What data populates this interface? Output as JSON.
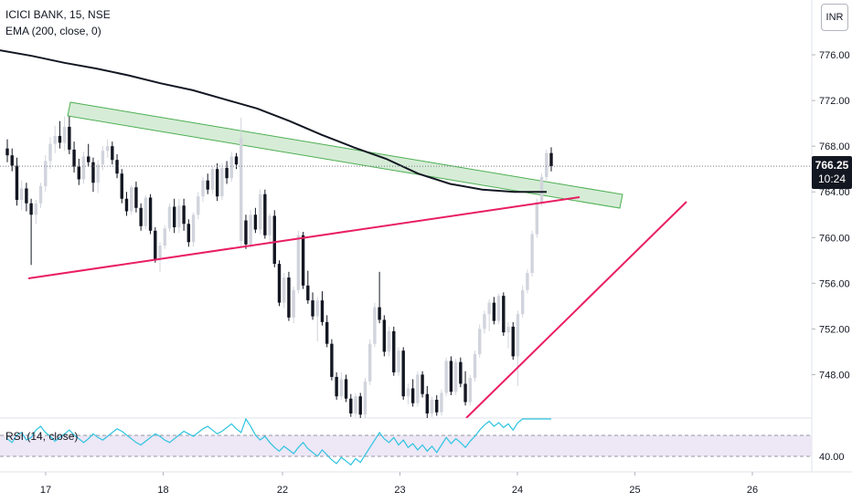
{
  "legend": {
    "symbol": "ICICI BANK, 15, NSE",
    "ema": "EMA (200, close, 0)",
    "rsi": "RSI (14, close)"
  },
  "currency": "INR",
  "last_price": {
    "price": "766.25",
    "countdown": "10:24"
  },
  "colors": {
    "up": "#d1d4dc",
    "down": "#131722",
    "ema": "#131722",
    "rsi_line": "#2ec4e0",
    "rsi_band": "#ede7f6",
    "channel_fill": "#c8e6c9",
    "channel_stroke": "#4caf50",
    "trendline": "#e91e63",
    "last_price_bg": "#131722"
  },
  "chart_data": {
    "type": "candlestick",
    "price_axis": {
      "ticks": [
        748,
        752,
        756,
        760,
        764,
        768,
        772,
        776
      ],
      "range": [
        744.2,
        780.8
      ]
    },
    "rsi_axis": {
      "ticks": [
        40
      ],
      "bands": [
        30,
        70
      ]
    },
    "time_axis": {
      "ticks": [
        "17",
        "18",
        "22",
        "23",
        "24",
        "25",
        "26"
      ]
    },
    "last_price": 766.25,
    "candles": [
      [
        767.8,
        768.6,
        766.6,
        767.2
      ],
      [
        767.2,
        767.8,
        765.8,
        766.3
      ],
      [
        766.3,
        767.0,
        762.8,
        763.3
      ],
      [
        763.3,
        765.0,
        762.4,
        764.3
      ],
      [
        764.3,
        764.8,
        762.3,
        763.0
      ],
      [
        763.0,
        763.4,
        757.6,
        762.0
      ],
      [
        762.0,
        763.3,
        761.2,
        763.0
      ],
      [
        763.0,
        764.8,
        762.6,
        764.5
      ],
      [
        764.5,
        767.2,
        764.0,
        766.7
      ],
      [
        766.7,
        768.8,
        766.0,
        768.2
      ],
      [
        768.2,
        769.8,
        767.4,
        768.9
      ],
      [
        768.9,
        770.2,
        767.8,
        768.3
      ],
      [
        768.3,
        770.6,
        767.6,
        769.7
      ],
      [
        769.7,
        770.6,
        767.3,
        767.7
      ],
      [
        767.7,
        768.4,
        765.7,
        766.2
      ],
      [
        766.2,
        766.9,
        764.6,
        765.1
      ],
      [
        765.1,
        767.5,
        764.7,
        767.1
      ],
      [
        767.1,
        768.2,
        766.2,
        766.6
      ],
      [
        766.6,
        767.0,
        764.0,
        764.8
      ],
      [
        764.8,
        766.8,
        763.9,
        766.4
      ],
      [
        766.4,
        768.0,
        765.9,
        767.6
      ],
      [
        767.6,
        768.6,
        767.0,
        768.0
      ],
      [
        768.0,
        768.4,
        766.4,
        766.8
      ],
      [
        766.8,
        767.3,
        765.2,
        765.6
      ],
      [
        765.6,
        766.0,
        763.0,
        763.4
      ],
      [
        763.4,
        764.0,
        761.9,
        762.3
      ],
      [
        762.3,
        764.6,
        762.0,
        764.4
      ],
      [
        764.4,
        764.9,
        762.2,
        762.6
      ],
      [
        762.6,
        763.0,
        760.6,
        761.0
      ],
      [
        761.0,
        763.7,
        760.7,
        763.5
      ],
      [
        763.5,
        763.8,
        760.3,
        760.6
      ],
      [
        760.6,
        760.9,
        757.8,
        758.1
      ],
      [
        758.1,
        759.6,
        757.0,
        759.3
      ],
      [
        759.3,
        761.1,
        759.0,
        760.8
      ],
      [
        760.8,
        763.0,
        760.5,
        762.7
      ],
      [
        762.7,
        763.4,
        760.4,
        760.9
      ],
      [
        760.9,
        763.4,
        760.4,
        762.8
      ],
      [
        762.8,
        763.4,
        760.6,
        761.2
      ],
      [
        761.2,
        761.6,
        759.2,
        759.6
      ],
      [
        759.6,
        762.2,
        759.2,
        762.0
      ],
      [
        762.0,
        764.0,
        761.6,
        763.6
      ],
      [
        763.6,
        765.3,
        763.1,
        765.0
      ],
      [
        765.0,
        765.6,
        763.8,
        764.2
      ],
      [
        764.2,
        766.3,
        763.8,
        766.0
      ],
      [
        766.0,
        766.5,
        763.2,
        763.6
      ],
      [
        763.6,
        766.5,
        763.3,
        766.1
      ],
      [
        766.1,
        766.7,
        764.7,
        765.2
      ],
      [
        765.2,
        767.5,
        764.9,
        767.1
      ],
      [
        767.1,
        767.4,
        766.0,
        766.4
      ],
      [
        759.7,
        770.5,
        759.2,
        768.7
      ],
      [
        761.5,
        762.0,
        759.0,
        759.4
      ],
      [
        759.4,
        762.4,
        759.1,
        762.0
      ],
      [
        762.0,
        762.6,
        760.4,
        760.7
      ],
      [
        760.7,
        764.2,
        760.3,
        763.8
      ],
      [
        763.8,
        764.2,
        759.9,
        760.2
      ],
      [
        760.2,
        762.1,
        759.6,
        761.9
      ],
      [
        761.9,
        762.4,
        757.4,
        757.7
      ],
      [
        757.7,
        758.0,
        754.0,
        754.3
      ],
      [
        754.3,
        756.9,
        753.8,
        756.5
      ],
      [
        756.5,
        757.0,
        752.7,
        753.0
      ],
      [
        753.0,
        755.7,
        752.5,
        755.4
      ],
      [
        755.4,
        760.6,
        755.1,
        760.2
      ],
      [
        760.2,
        760.5,
        755.5,
        755.8
      ],
      [
        755.8,
        757.1,
        754.2,
        754.5
      ],
      [
        754.5,
        755.2,
        752.8,
        753.1
      ],
      [
        753.1,
        754.8,
        750.9,
        754.5
      ],
      [
        754.5,
        755.3,
        752.3,
        752.6
      ],
      [
        752.6,
        753.2,
        750.4,
        750.7
      ],
      [
        750.7,
        751.1,
        747.5,
        747.8
      ],
      [
        747.8,
        748.2,
        745.8,
        746.1
      ],
      [
        746.1,
        748.2,
        745.8,
        747.6
      ],
      [
        747.6,
        748.0,
        745.6,
        745.9
      ],
      [
        745.9,
        746.3,
        744.3,
        744.6
      ],
      [
        744.6,
        746.4,
        744.3,
        746.1
      ],
      [
        746.1,
        746.4,
        744.2,
        744.5
      ],
      [
        744.5,
        747.7,
        744.2,
        747.4
      ],
      [
        747.4,
        751.1,
        747.1,
        750.7
      ],
      [
        750.7,
        754.3,
        750.4,
        753.9
      ],
      [
        753.9,
        757.0,
        752.5,
        752.8
      ],
      [
        752.8,
        753.2,
        749.6,
        750.0
      ],
      [
        750.0,
        752.2,
        749.6,
        751.8
      ],
      [
        751.8,
        752.2,
        747.9,
        748.2
      ],
      [
        748.2,
        750.4,
        747.9,
        750.1
      ],
      [
        750.1,
        750.4,
        745.8,
        746.1
      ],
      [
        746.1,
        747.2,
        745.4,
        746.8
      ],
      [
        746.8,
        747.6,
        745.2,
        745.5
      ],
      [
        745.5,
        748.3,
        745.2,
        748.0
      ],
      [
        748.0,
        748.3,
        746.0,
        746.3
      ],
      [
        746.3,
        747.0,
        744.2,
        744.6
      ],
      [
        744.6,
        746.1,
        744.3,
        745.8
      ],
      [
        745.8,
        746.2,
        744.4,
        744.7
      ],
      [
        744.7,
        746.7,
        744.4,
        746.4
      ],
      [
        746.4,
        749.5,
        746.1,
        749.2
      ],
      [
        749.2,
        749.6,
        746.2,
        746.5
      ],
      [
        746.5,
        749.4,
        746.2,
        749.1
      ],
      [
        749.1,
        749.5,
        746.9,
        747.2
      ],
      [
        747.2,
        748.3,
        745.3,
        745.6
      ],
      [
        745.6,
        748.0,
        745.3,
        747.7
      ],
      [
        747.7,
        750.1,
        747.4,
        749.8
      ],
      [
        749.8,
        752.4,
        749.5,
        752.0
      ],
      [
        752.0,
        753.6,
        751.6,
        753.3
      ],
      [
        753.3,
        754.6,
        751.8,
        754.3
      ],
      [
        754.3,
        754.8,
        752.4,
        752.7
      ],
      [
        752.7,
        755.1,
        752.4,
        754.9
      ],
      [
        754.9,
        755.2,
        751.4,
        751.7
      ],
      [
        751.7,
        752.6,
        750.3,
        752.2
      ],
      [
        752.2,
        752.6,
        749.3,
        749.6
      ],
      [
        749.6,
        753.6,
        747.0,
        753.3
      ],
      [
        753.3,
        755.8,
        753.0,
        755.4
      ],
      [
        755.4,
        757.2,
        755.1,
        756.9
      ],
      [
        756.9,
        760.6,
        756.6,
        760.3
      ],
      [
        760.3,
        763.4,
        760.0,
        763.1
      ],
      [
        763.1,
        765.6,
        762.8,
        765.3
      ],
      [
        765.3,
        767.7,
        765.0,
        767.4
      ],
      [
        767.4,
        767.9,
        765.8,
        766.25
      ]
    ],
    "ema_200": [
      776.4,
      775.9,
      775.3,
      774.8,
      774.2,
      773.5,
      772.9,
      772.1,
      771.3,
      770.2,
      769.0,
      767.9,
      766.9,
      765.6,
      764.7,
      764.2,
      764.0,
      764.0
    ],
    "rsi": [
      45,
      42,
      48,
      50,
      44,
      46,
      52,
      55,
      50,
      47,
      43,
      46,
      49,
      52,
      48,
      45,
      42,
      45,
      49,
      46,
      44,
      47,
      50,
      53,
      51,
      48,
      45,
      42,
      40,
      43,
      46,
      49,
      47,
      44,
      42,
      45,
      48,
      51,
      49,
      47,
      50,
      53,
      55,
      52,
      49,
      51,
      54,
      57,
      53,
      50,
      62,
      55,
      48,
      44,
      47,
      42,
      38,
      35,
      39,
      36,
      33,
      38,
      42,
      37,
      34,
      31,
      36,
      32,
      28,
      25,
      30,
      27,
      24,
      29,
      26,
      32,
      38,
      44,
      50,
      45,
      42,
      46,
      40,
      44,
      38,
      41,
      36,
      40,
      35,
      39,
      34,
      40,
      46,
      41,
      45,
      42,
      38,
      43,
      47,
      52,
      56,
      59,
      55,
      58,
      54,
      57,
      52,
      58,
      63,
      67,
      72,
      75,
      79,
      82,
      80
    ]
  }
}
